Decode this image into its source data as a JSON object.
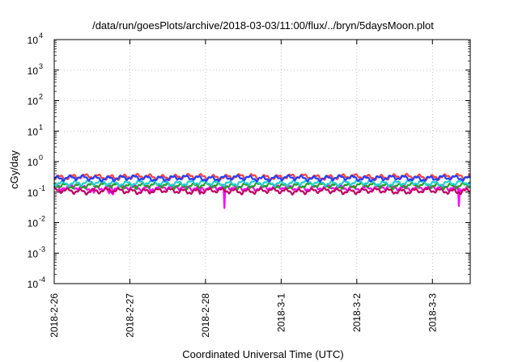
{
  "chart_data": {
    "type": "line",
    "title": "/data/run/goesPlots/archive/2018-03-03/11:00/flux/../bryn/5daysMoon.plot",
    "xlabel": "Coordinated Universal Time (UTC)",
    "ylabel": "cGy/day",
    "yscale": "log",
    "ylim": [
      0.0001,
      10000
    ],
    "y_ticks": [
      {
        "value": 0.0001,
        "base": "10",
        "exp": "-4"
      },
      {
        "value": 0.001,
        "base": "10",
        "exp": "-3"
      },
      {
        "value": 0.01,
        "base": "10",
        "exp": "-2"
      },
      {
        "value": 0.1,
        "base": "10",
        "exp": "-1"
      },
      {
        "value": 1,
        "base": "10",
        "exp": "0"
      },
      {
        "value": 10,
        "base": "10",
        "exp": "1"
      },
      {
        "value": 100,
        "base": "10",
        "exp": "2"
      },
      {
        "value": 1000,
        "base": "10",
        "exp": "3"
      },
      {
        "value": 10000,
        "base": "10",
        "exp": "4"
      }
    ],
    "x_range_days": [
      0,
      5.5
    ],
    "x_ticks": [
      {
        "day": 0,
        "label": "2018-2-26"
      },
      {
        "day": 1,
        "label": "2018-2-27"
      },
      {
        "day": 2,
        "label": "2018-2-28"
      },
      {
        "day": 3,
        "label": "2018-3-1"
      },
      {
        "day": 4,
        "label": "2018-3-2"
      },
      {
        "day": 5,
        "label": "2018-3-3"
      }
    ],
    "grid": true,
    "legend": "none",
    "series": [
      {
        "color": "#ff00ff",
        "base": 0.14,
        "spikes": [
          {
            "day": 0.08,
            "value": 0.07
          },
          {
            "day": 0.52,
            "value": 0.07
          },
          {
            "day": 0.72,
            "value": 0.06
          },
          {
            "day": 0.78,
            "value": 0.06
          },
          {
            "day": 1.28,
            "value": 0.08
          },
          {
            "day": 1.92,
            "value": 0.06
          },
          {
            "day": 2.25,
            "value": 0.03
          },
          {
            "day": 5.35,
            "value": 0.035
          }
        ]
      },
      {
        "color": "#c00060",
        "base": 0.11
      },
      {
        "color": "#20a020",
        "base": 0.165
      },
      {
        "color": "#20d0d0",
        "base": 0.2
      },
      {
        "color": "#ff4040",
        "base": 0.32
      },
      {
        "color": "#2040ff",
        "base": 0.29
      }
    ]
  }
}
